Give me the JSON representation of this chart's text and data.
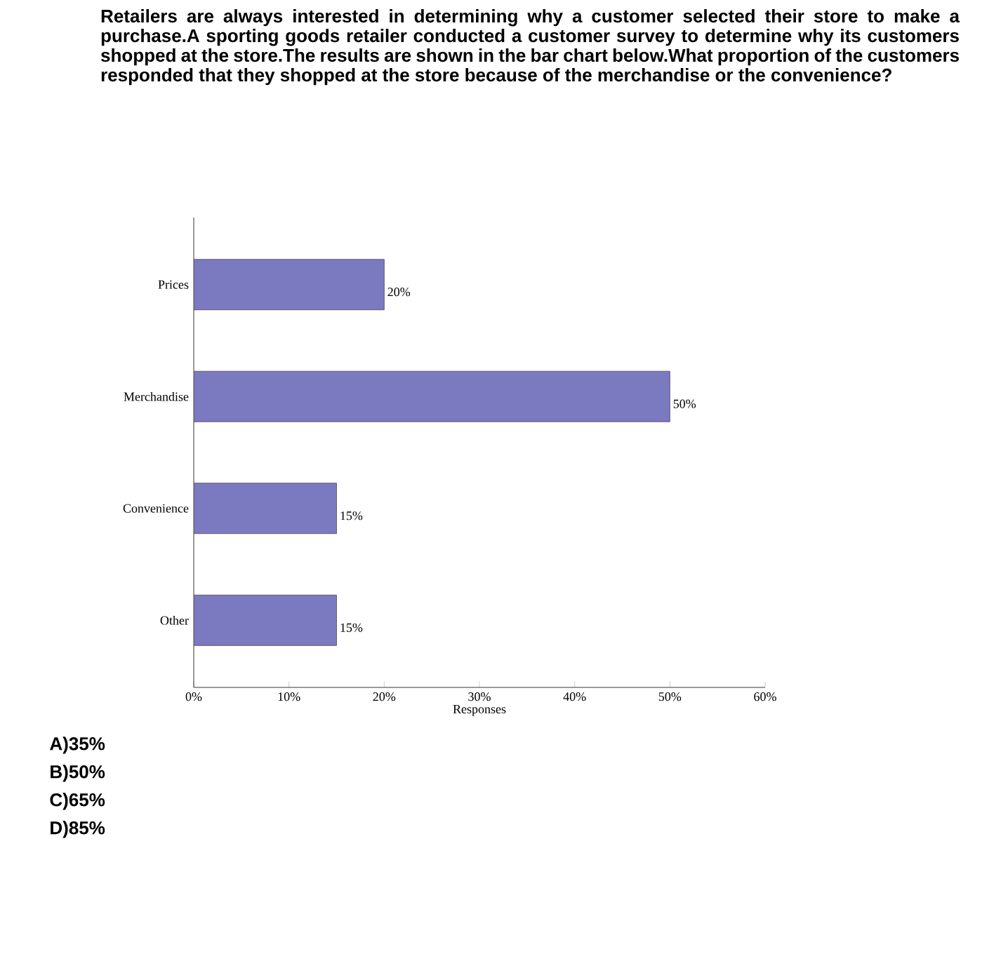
{
  "chart_data": {
    "type": "bar",
    "orientation": "horizontal",
    "title": "Retailers are always interested in determining why a customer selected their store to make a purchase.A sporting goods retailer conducted a customer survey to determine why its customers shopped at the store.The results are shown in the bar chart below.What proportion of the customers responded that they shopped at the store because of the merchandise or the convenience?",
    "categories": [
      "Prices",
      "Merchandise",
      "Convenience",
      "Other"
    ],
    "values": [
      20,
      50,
      15,
      15
    ],
    "value_labels": [
      "20%",
      "50%",
      "15%",
      "15%"
    ],
    "color": "#7b79c0",
    "xlabel": "Responses",
    "xlim": [
      0,
      60
    ],
    "xticks": [
      {
        "value": 0,
        "label": "0%"
      },
      {
        "value": 10,
        "label": "10%"
      },
      {
        "value": 20,
        "label": "20%"
      },
      {
        "value": 30,
        "label": "30%"
      },
      {
        "value": 40,
        "label": "40%"
      },
      {
        "value": 50,
        "label": "50%"
      },
      {
        "value": 60,
        "label": "60%"
      }
    ],
    "annotations": [
      "A)35%",
      "B)50%",
      "C)65%",
      "D)85%"
    ]
  }
}
